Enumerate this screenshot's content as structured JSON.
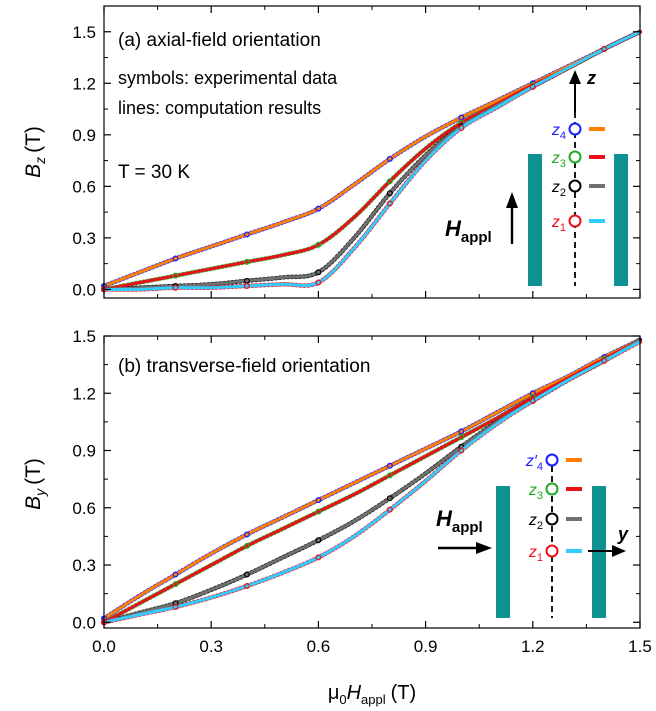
{
  "figure": {
    "xlabel_prefix": "μ",
    "xlabel_sub0": "0",
    "xlabel_main": "H",
    "xlabel_sub": "appl",
    "xlabel_unit": "(T)",
    "xticks": [
      "0.0",
      "0.3",
      "0.6",
      "0.9",
      "1.2",
      "1.5"
    ]
  },
  "chart_data": [
    {
      "type": "line",
      "panel_label": "(a) axial-field orientation",
      "ylabel": "B",
      "ylabel_sub": "z",
      "ylabel_unit": "(T)",
      "xlim": [
        0,
        1.5
      ],
      "ylim": [
        -0.05,
        1.65
      ],
      "yticks": [
        "0.0",
        "0.3",
        "0.6",
        "0.9",
        "1.2",
        "1.5"
      ],
      "grid": false,
      "notes": [
        "symbols: experimental data",
        "lines: computation results"
      ],
      "temperature_label": "T = 30 K",
      "inset": {
        "axis_label": "z",
        "field_label": "H",
        "field_sub": "appl",
        "sensors": [
          {
            "name": "z",
            "sub": "4",
            "prime": false,
            "color": "#1a1aff",
            "line_color": "#ff7f00"
          },
          {
            "name": "z",
            "sub": "3",
            "prime": false,
            "color": "#22aa22",
            "line_color": "#e8101a"
          },
          {
            "name": "z",
            "sub": "2",
            "prime": false,
            "color": "#000000",
            "line_color": "#707070"
          },
          {
            "name": "z",
            "sub": "1",
            "prime": false,
            "color": "#e8101a",
            "line_color": "#33ccff"
          }
        ],
        "bore_color": "#0f9191"
      },
      "series": [
        {
          "sensor": "z4",
          "symbol_color": "#1a1aff",
          "line_color": "#ff7f00",
          "x": [
            0,
            0.1,
            0.2,
            0.3,
            0.4,
            0.5,
            0.6,
            0.7,
            0.8,
            0.9,
            1.0,
            1.1,
            1.2,
            1.3,
            1.4,
            1.5
          ],
          "y": [
            0.02,
            0.1,
            0.18,
            0.25,
            0.32,
            0.39,
            0.47,
            0.61,
            0.76,
            0.89,
            1.0,
            1.1,
            1.2,
            1.3,
            1.4,
            1.5
          ]
        },
        {
          "sensor": "z3",
          "symbol_color": "#22aa22",
          "line_color": "#e8101a",
          "x": [
            0,
            0.1,
            0.2,
            0.3,
            0.4,
            0.5,
            0.6,
            0.7,
            0.8,
            0.9,
            1.0,
            1.1,
            1.2,
            1.3,
            1.4,
            1.5
          ],
          "y": [
            0.0,
            0.04,
            0.08,
            0.12,
            0.16,
            0.2,
            0.26,
            0.42,
            0.63,
            0.82,
            0.97,
            1.08,
            1.19,
            1.29,
            1.4,
            1.5
          ]
        },
        {
          "sensor": "z2",
          "symbol_color": "#000000",
          "line_color": "#707070",
          "x": [
            0,
            0.1,
            0.2,
            0.3,
            0.4,
            0.5,
            0.6,
            0.7,
            0.8,
            0.9,
            1.0,
            1.1,
            1.2,
            1.3,
            1.4,
            1.5
          ],
          "y": [
            0.0,
            0.01,
            0.02,
            0.03,
            0.05,
            0.07,
            0.1,
            0.3,
            0.56,
            0.78,
            0.95,
            1.07,
            1.18,
            1.29,
            1.4,
            1.5
          ]
        },
        {
          "sensor": "z1",
          "symbol_color": "#e8101a",
          "line_color": "#33ccff",
          "x": [
            0,
            0.1,
            0.2,
            0.3,
            0.4,
            0.5,
            0.6,
            0.7,
            0.8,
            0.9,
            1.0,
            1.1,
            1.2,
            1.3,
            1.4,
            1.5
          ],
          "y": [
            0.0,
            0.0,
            0.01,
            0.01,
            0.02,
            0.03,
            0.04,
            0.24,
            0.5,
            0.75,
            0.94,
            1.06,
            1.18,
            1.29,
            1.4,
            1.5
          ]
        }
      ]
    },
    {
      "type": "line",
      "panel_label": "(b) transverse-field orientation",
      "ylabel": "B",
      "ylabel_sub": "y",
      "ylabel_unit": "(T)",
      "xlim": [
        0,
        1.5
      ],
      "ylim": [
        -0.03,
        1.5
      ],
      "yticks": [
        "0.0",
        "0.3",
        "0.6",
        "0.9",
        "1.2",
        "1.5"
      ],
      "grid": false,
      "inset": {
        "axis_label": "y",
        "field_label": "H",
        "field_sub": "appl",
        "sensors": [
          {
            "name": "z",
            "sub": "4",
            "prime": true,
            "color": "#1a1aff",
            "line_color": "#ff7f00"
          },
          {
            "name": "z",
            "sub": "3",
            "prime": false,
            "color": "#22aa22",
            "line_color": "#e8101a"
          },
          {
            "name": "z",
            "sub": "2",
            "prime": false,
            "color": "#000000",
            "line_color": "#707070"
          },
          {
            "name": "z",
            "sub": "1",
            "prime": false,
            "color": "#e8101a",
            "line_color": "#33ccff"
          }
        ],
        "bore_color": "#0f9191"
      },
      "series": [
        {
          "sensor": "z'4",
          "symbol_color": "#1a1aff",
          "line_color": "#ff7f00",
          "x": [
            0,
            0.1,
            0.2,
            0.3,
            0.4,
            0.5,
            0.6,
            0.7,
            0.8,
            0.9,
            1.0,
            1.1,
            1.2,
            1.3,
            1.4,
            1.5
          ],
          "y": [
            0.02,
            0.14,
            0.25,
            0.36,
            0.46,
            0.55,
            0.64,
            0.73,
            0.82,
            0.91,
            1.0,
            1.1,
            1.2,
            1.29,
            1.39,
            1.48
          ]
        },
        {
          "sensor": "z3",
          "symbol_color": "#22aa22",
          "line_color": "#e8101a",
          "x": [
            0,
            0.1,
            0.2,
            0.3,
            0.4,
            0.5,
            0.6,
            0.7,
            0.8,
            0.9,
            1.0,
            1.1,
            1.2,
            1.3,
            1.4,
            1.5
          ],
          "y": [
            0.0,
            0.1,
            0.2,
            0.3,
            0.4,
            0.49,
            0.58,
            0.67,
            0.77,
            0.87,
            0.97,
            1.07,
            1.18,
            1.28,
            1.38,
            1.48
          ]
        },
        {
          "sensor": "z2",
          "symbol_color": "#000000",
          "line_color": "#707070",
          "x": [
            0,
            0.1,
            0.2,
            0.3,
            0.4,
            0.5,
            0.6,
            0.7,
            0.8,
            0.9,
            1.0,
            1.1,
            1.2,
            1.3,
            1.4,
            1.5
          ],
          "y": [
            0.0,
            0.05,
            0.1,
            0.17,
            0.25,
            0.34,
            0.43,
            0.53,
            0.65,
            0.78,
            0.92,
            1.05,
            1.16,
            1.27,
            1.37,
            1.48
          ]
        },
        {
          "sensor": "z1",
          "symbol_color": "#e8101a",
          "line_color": "#33ccff",
          "x": [
            0,
            0.1,
            0.2,
            0.3,
            0.4,
            0.5,
            0.6,
            0.7,
            0.8,
            0.9,
            1.0,
            1.1,
            1.2,
            1.3,
            1.4,
            1.5
          ],
          "y": [
            0.0,
            0.04,
            0.08,
            0.13,
            0.19,
            0.26,
            0.34,
            0.45,
            0.59,
            0.74,
            0.9,
            1.04,
            1.16,
            1.27,
            1.37,
            1.47
          ]
        }
      ]
    }
  ]
}
